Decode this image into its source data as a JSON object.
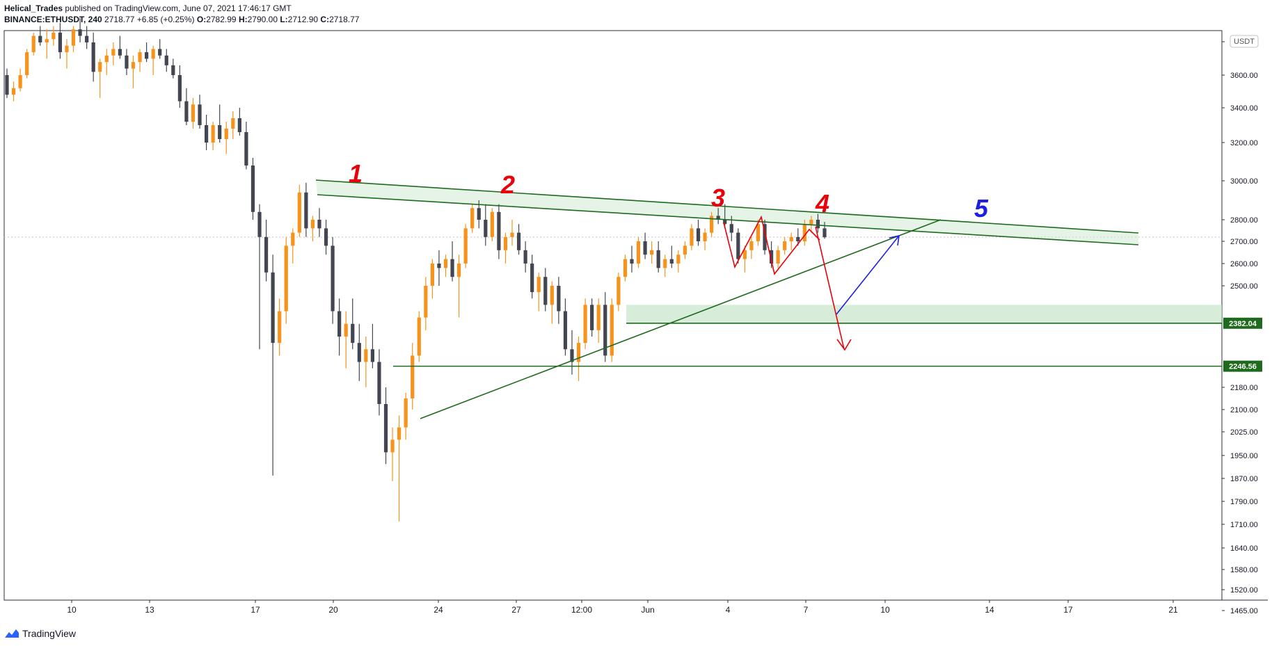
{
  "header": {
    "author": "Helical_Trades",
    "published": "published on TradingView.com, June 07, 2021 17:46:17 GMT",
    "symbol": "BINANCE:ETHUSDT, 240",
    "last": "2718.77",
    "change": "+6.85 (+0.25%)",
    "o_label": "O:",
    "o_value": "2782.99",
    "h_label": "H:",
    "h_value": "2790.00",
    "l_label": "L:",
    "l_value": "2712.90",
    "c_label": "C:",
    "c_value": "2718.77"
  },
  "footer": {
    "brand": "TradingView",
    "logo_icon": "tradingview-logo-icon"
  },
  "colors": {
    "up": "#f7931a",
    "down": "#434651",
    "trend": "#1e6b1e",
    "zone": "#c8e6c9",
    "wave": "#e8000b",
    "wave5": "#1f1fdd",
    "label_bg": "#1e6b1e"
  },
  "chart_data": {
    "type": "candlestick",
    "currency": "USDT",
    "y_ticks": [
      3600,
      3400,
      3200,
      3000,
      2800,
      2700,
      2600,
      2500,
      2180,
      2100,
      2025,
      1950,
      1870,
      1790,
      1710,
      1640,
      1580,
      1520,
      1465
    ],
    "y_tick_labels": [
      "3600.00",
      "3400.00",
      "3200.00",
      "3000.00",
      "2800.00",
      "2700.00",
      "2600.00",
      "2500.00",
      "2180.00",
      "2100.00",
      "2025.00",
      "1950.00",
      "1870.00",
      "1790.00",
      "1710.00",
      "1640.00",
      "1580.00",
      "1520.00",
      "1465.00"
    ],
    "x_tick_labels": [
      "10",
      "13",
      "17",
      "20",
      "24",
      "27",
      "12:00",
      "Jun",
      "4",
      "7",
      "10",
      "14",
      "17",
      "21"
    ],
    "price_labels": [
      "2382.04",
      "2246.56"
    ],
    "wave_labels": [
      "1",
      "2",
      "3",
      "4",
      "5"
    ],
    "candles": [
      [
        3600,
        3640,
        3460,
        3480
      ],
      [
        3480,
        3560,
        3440,
        3520
      ],
      [
        3520,
        3640,
        3500,
        3600
      ],
      [
        3600,
        3760,
        3580,
        3740
      ],
      [
        3740,
        3860,
        3720,
        3840
      ],
      [
        3840,
        3900,
        3780,
        3800
      ],
      [
        3800,
        3880,
        3700,
        3820
      ],
      [
        3820,
        3900,
        3780,
        3860
      ],
      [
        3860,
        3920,
        3700,
        3740
      ],
      [
        3740,
        3820,
        3640,
        3780
      ],
      [
        3780,
        3900,
        3740,
        3880
      ],
      [
        3880,
        3950,
        3800,
        3840
      ],
      [
        3840,
        3900,
        3760,
        3800
      ],
      [
        3800,
        3860,
        3560,
        3620
      ],
      [
        3620,
        3700,
        3460,
        3680
      ],
      [
        3680,
        3760,
        3600,
        3720
      ],
      [
        3720,
        3800,
        3660,
        3760
      ],
      [
        3760,
        3840,
        3700,
        3720
      ],
      [
        3720,
        3760,
        3600,
        3640
      ],
      [
        3640,
        3720,
        3520,
        3680
      ],
      [
        3680,
        3760,
        3620,
        3740
      ],
      [
        3740,
        3800,
        3680,
        3700
      ],
      [
        3700,
        3780,
        3600,
        3760
      ],
      [
        3760,
        3820,
        3700,
        3720
      ],
      [
        3720,
        3760,
        3620,
        3660
      ],
      [
        3660,
        3700,
        3580,
        3600
      ],
      [
        3600,
        3660,
        3400,
        3440
      ],
      [
        3440,
        3520,
        3300,
        3320
      ],
      [
        3320,
        3460,
        3280,
        3420
      ],
      [
        3420,
        3480,
        3280,
        3300
      ],
      [
        3300,
        3360,
        3160,
        3200
      ],
      [
        3200,
        3320,
        3160,
        3300
      ],
      [
        3300,
        3420,
        3200,
        3220
      ],
      [
        3220,
        3320,
        3140,
        3280
      ],
      [
        3280,
        3380,
        3220,
        3340
      ],
      [
        3340,
        3400,
        3240,
        3260
      ],
      [
        3260,
        3320,
        3060,
        3080
      ],
      [
        3080,
        3120,
        2800,
        2840
      ],
      [
        2840,
        2880,
        2300,
        2720
      ],
      [
        2720,
        2800,
        2520,
        2560
      ],
      [
        2560,
        2640,
        1880,
        2320
      ],
      [
        2320,
        2460,
        2280,
        2420
      ],
      [
        2420,
        2720,
        2380,
        2680
      ],
      [
        2680,
        2760,
        2600,
        2740
      ],
      [
        2740,
        2980,
        2720,
        2940
      ],
      [
        2940,
        2990,
        2720,
        2760
      ],
      [
        2760,
        2820,
        2700,
        2800
      ],
      [
        2800,
        2860,
        2720,
        2760
      ],
      [
        2760,
        2800,
        2640,
        2680
      ],
      [
        2680,
        2720,
        2380,
        2420
      ],
      [
        2420,
        2460,
        2280,
        2340
      ],
      [
        2340,
        2420,
        2240,
        2380
      ],
      [
        2380,
        2460,
        2300,
        2320
      ],
      [
        2320,
        2380,
        2200,
        2260
      ],
      [
        2260,
        2340,
        2180,
        2300
      ],
      [
        2300,
        2380,
        2240,
        2260
      ],
      [
        2260,
        2300,
        2080,
        2120
      ],
      [
        2120,
        2180,
        1920,
        1960
      ],
      [
        1960,
        2040,
        1860,
        2000
      ],
      [
        2000,
        2080,
        1720,
        2040
      ],
      [
        2040,
        2160,
        2000,
        2140
      ],
      [
        2140,
        2320,
        2100,
        2280
      ],
      [
        2280,
        2420,
        2260,
        2400
      ],
      [
        2400,
        2540,
        2360,
        2500
      ],
      [
        2500,
        2620,
        2460,
        2600
      ],
      [
        2600,
        2660,
        2500,
        2580
      ],
      [
        2580,
        2640,
        2540,
        2620
      ],
      [
        2620,
        2700,
        2520,
        2540
      ],
      [
        2540,
        2640,
        2400,
        2600
      ],
      [
        2600,
        2780,
        2580,
        2760
      ],
      [
        2760,
        2880,
        2740,
        2860
      ],
      [
        2860,
        2900,
        2760,
        2800
      ],
      [
        2800,
        2880,
        2680,
        2720
      ],
      [
        2720,
        2860,
        2700,
        2840
      ],
      [
        2840,
        2880,
        2620,
        2660
      ],
      [
        2660,
        2740,
        2600,
        2720
      ],
      [
        2720,
        2800,
        2680,
        2740
      ],
      [
        2740,
        2780,
        2640,
        2660
      ],
      [
        2660,
        2700,
        2560,
        2600
      ],
      [
        2600,
        2640,
        2460,
        2480
      ],
      [
        2480,
        2560,
        2420,
        2540
      ],
      [
        2540,
        2580,
        2420,
        2440
      ],
      [
        2440,
        2520,
        2380,
        2500
      ],
      [
        2500,
        2540,
        2380,
        2420
      ],
      [
        2420,
        2460,
        2280,
        2300
      ],
      [
        2300,
        2360,
        2220,
        2260
      ],
      [
        2260,
        2340,
        2200,
        2320
      ],
      [
        2320,
        2460,
        2300,
        2440
      ],
      [
        2440,
        2460,
        2340,
        2360
      ],
      [
        2360,
        2460,
        2320,
        2440
      ],
      [
        2440,
        2480,
        2260,
        2280
      ],
      [
        2280,
        2460,
        2260,
        2440
      ],
      [
        2440,
        2560,
        2420,
        2540
      ],
      [
        2540,
        2640,
        2520,
        2620
      ],
      [
        2620,
        2680,
        2560,
        2600
      ],
      [
        2600,
        2720,
        2580,
        2700
      ],
      [
        2700,
        2740,
        2620,
        2640
      ],
      [
        2640,
        2700,
        2600,
        2660
      ],
      [
        2660,
        2700,
        2560,
        2580
      ],
      [
        2580,
        2640,
        2540,
        2620
      ],
      [
        2620,
        2680,
        2580,
        2600
      ],
      [
        2600,
        2660,
        2560,
        2640
      ],
      [
        2640,
        2700,
        2620,
        2680
      ],
      [
        2680,
        2780,
        2660,
        2760
      ],
      [
        2760,
        2800,
        2680,
        2700
      ],
      [
        2700,
        2760,
        2660,
        2740
      ],
      [
        2740,
        2840,
        2720,
        2820
      ],
      [
        2820,
        2860,
        2780,
        2800
      ],
      [
        2800,
        2880,
        2760,
        2780
      ],
      [
        2780,
        2820,
        2700,
        2740
      ],
      [
        2740,
        2760,
        2600,
        2620
      ],
      [
        2620,
        2680,
        2560,
        2660
      ],
      [
        2660,
        2720,
        2620,
        2700
      ],
      [
        2700,
        2800,
        2680,
        2780
      ],
      [
        2780,
        2800,
        2640,
        2660
      ],
      [
        2660,
        2700,
        2580,
        2600
      ],
      [
        2600,
        2680,
        2580,
        2660
      ],
      [
        2660,
        2720,
        2640,
        2700
      ],
      [
        2700,
        2740,
        2660,
        2720
      ],
      [
        2720,
        2760,
        2680,
        2700
      ],
      [
        2700,
        2800,
        2680,
        2780
      ],
      [
        2780,
        2820,
        2740,
        2800
      ],
      [
        2800,
        2830,
        2740,
        2760
      ],
      [
        2760,
        2790,
        2712,
        2719
      ]
    ]
  }
}
